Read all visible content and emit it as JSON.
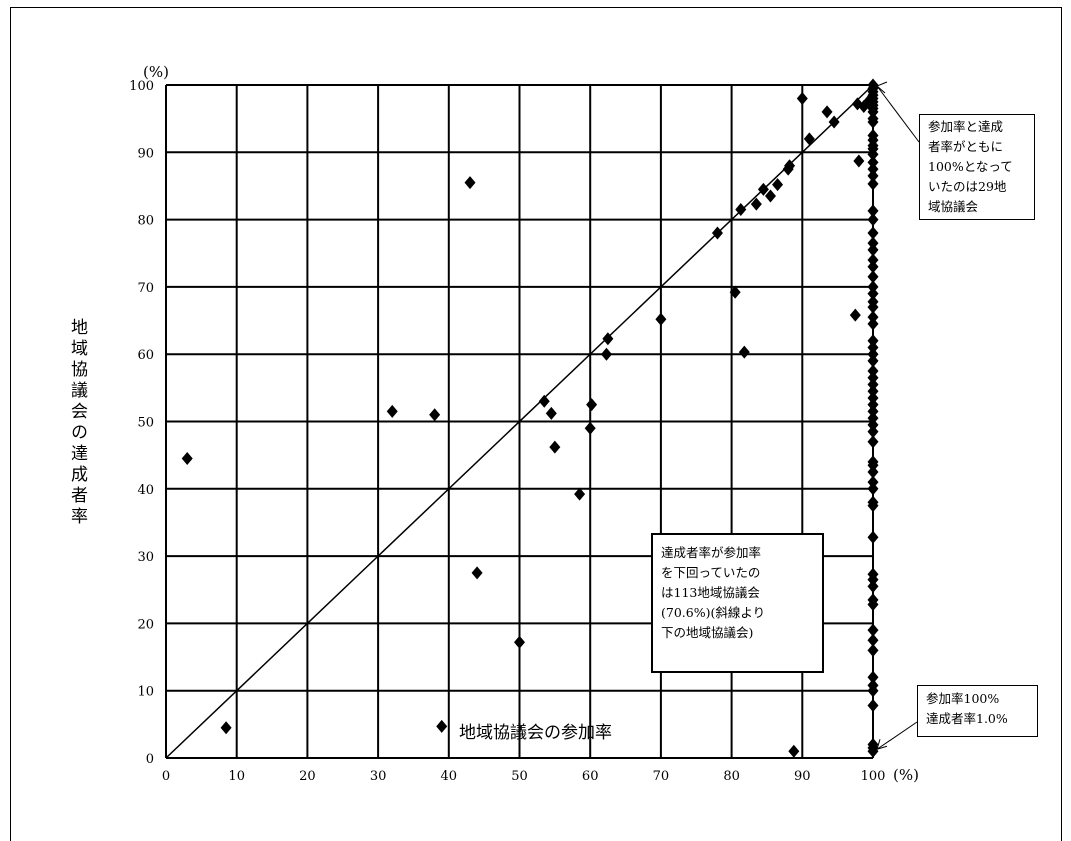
{
  "chart_data": {
    "type": "scatter",
    "xlabel": "地域協議会の参加率",
    "ylabel": "地域協議会の達成者率",
    "x_unit": "(%)",
    "y_unit": "(%)",
    "xlim": [
      0,
      100
    ],
    "ylim": [
      0,
      100
    ],
    "x_ticks": [
      0,
      10,
      20,
      30,
      40,
      50,
      60,
      70,
      80,
      90,
      100
    ],
    "y_ticks": [
      0,
      10,
      20,
      30,
      40,
      50,
      60,
      70,
      80,
      90,
      100
    ],
    "grid": true,
    "reference_line": "y=x",
    "points": [
      [
        3,
        44.5
      ],
      [
        8.5,
        4.5
      ],
      [
        32,
        51.5
      ],
      [
        38,
        51
      ],
      [
        39,
        4.7
      ],
      [
        43,
        85.5
      ],
      [
        44,
        27.5
      ],
      [
        50,
        17.2
      ],
      [
        53.5,
        53
      ],
      [
        54.5,
        51.2
      ],
      [
        55,
        46.2
      ],
      [
        58.5,
        39.2
      ],
      [
        60,
        49
      ],
      [
        60.2,
        52.5
      ],
      [
        62.3,
        60
      ],
      [
        62.5,
        62.3
      ],
      [
        70,
        65.2
      ],
      [
        78,
        78
      ],
      [
        80.5,
        69.2
      ],
      [
        81.3,
        81.5
      ],
      [
        81.8,
        60.3
      ],
      [
        83.5,
        82.3
      ],
      [
        84.5,
        84.5
      ],
      [
        85.5,
        83.5
      ],
      [
        86.5,
        85.2
      ],
      [
        88,
        87.5
      ],
      [
        88.2,
        88
      ],
      [
        88.8,
        1
      ],
      [
        90,
        98
      ],
      [
        91,
        92
      ],
      [
        93.5,
        96
      ],
      [
        94.5,
        94.5
      ],
      [
        97.5,
        65.8
      ],
      [
        98,
        88.7
      ],
      [
        97.8,
        97.2
      ],
      [
        98.7,
        96.8
      ],
      [
        99.3,
        97.5
      ],
      [
        100,
        100
      ],
      [
        100,
        99.5
      ],
      [
        100,
        99
      ],
      [
        100,
        98.5
      ],
      [
        100,
        98
      ],
      [
        100,
        97.5
      ],
      [
        100,
        97
      ],
      [
        100,
        96.5
      ],
      [
        100,
        96
      ],
      [
        100,
        95
      ],
      [
        100,
        94.5
      ],
      [
        100,
        92.5
      ],
      [
        100,
        91.8
      ],
      [
        100,
        91
      ],
      [
        100,
        90.5
      ],
      [
        100,
        89.7
      ],
      [
        100,
        88.5
      ],
      [
        100,
        87.5
      ],
      [
        100,
        86.5
      ],
      [
        100,
        85.3
      ],
      [
        100,
        81.3
      ],
      [
        100,
        80
      ],
      [
        100,
        78
      ],
      [
        100,
        76.5
      ],
      [
        100,
        75.5
      ],
      [
        100,
        74
      ],
      [
        100,
        73
      ],
      [
        100,
        71.5
      ],
      [
        100,
        70
      ],
      [
        100,
        69
      ],
      [
        100,
        67.8
      ],
      [
        100,
        67
      ],
      [
        100,
        65.5
      ],
      [
        100,
        64.5
      ],
      [
        100,
        62
      ],
      [
        100,
        61
      ],
      [
        100,
        60
      ],
      [
        100,
        59
      ],
      [
        100,
        57.5
      ],
      [
        100,
        56.5
      ],
      [
        100,
        55.5
      ],
      [
        100,
        54.5
      ],
      [
        100,
        53.5
      ],
      [
        100,
        52.5
      ],
      [
        100,
        51.5
      ],
      [
        100,
        50.5
      ],
      [
        100,
        49.5
      ],
      [
        100,
        48.5
      ],
      [
        100,
        47
      ],
      [
        100,
        44
      ],
      [
        100,
        43.5
      ],
      [
        100,
        42.5
      ],
      [
        100,
        41
      ],
      [
        100,
        40
      ],
      [
        100,
        38
      ],
      [
        100,
        37.5
      ],
      [
        100,
        32.8
      ],
      [
        100,
        27.3
      ],
      [
        100,
        26.5
      ],
      [
        100,
        25.5
      ],
      [
        100,
        23.5
      ],
      [
        100,
        22.8
      ],
      [
        100,
        19
      ],
      [
        100,
        17.5
      ],
      [
        100,
        16
      ],
      [
        100,
        12
      ],
      [
        100,
        10.8
      ],
      [
        100,
        10
      ],
      [
        100,
        7.8
      ],
      [
        100,
        2
      ],
      [
        100,
        1.5
      ],
      [
        100,
        1
      ]
    ],
    "annotations": [
      "参加率と達成\n者率がともに\n100%となって\nいたのは29地\n域協議会",
      "達成者率が参加率\nを下回っていたの\nは113地域協議会\n(70.6%)(斜線より\n下の地域協議会)",
      "参加率100%\n達成者率1.0%"
    ]
  }
}
